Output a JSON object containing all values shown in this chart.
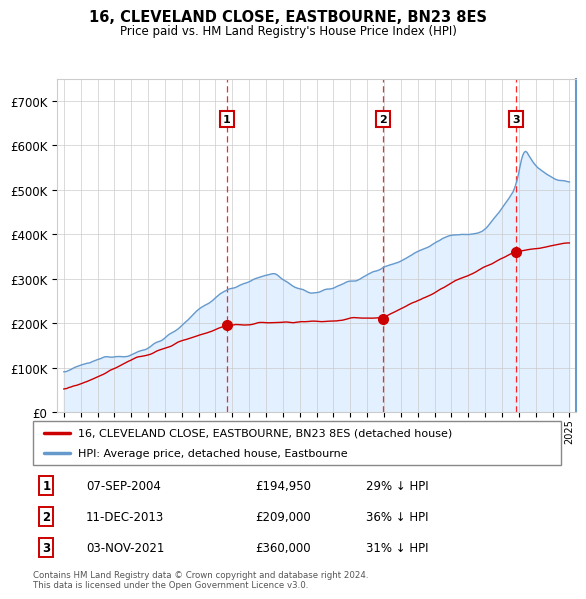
{
  "title": "16, CLEVELAND CLOSE, EASTBOURNE, BN23 8ES",
  "subtitle": "Price paid vs. HM Land Registry's House Price Index (HPI)",
  "sale_prices": [
    194950,
    209000,
    360000
  ],
  "sale_labels": [
    "1",
    "2",
    "3"
  ],
  "sale_pct": [
    "29% ↓ HPI",
    "36% ↓ HPI",
    "31% ↓ HPI"
  ],
  "sale_date_labels": [
    "07-SEP-2004",
    "11-DEC-2013",
    "03-NOV-2021"
  ],
  "sale_price_labels": [
    "£194,950",
    "£209,000",
    "£360,000"
  ],
  "sale_times": [
    2004.686,
    2013.948,
    2021.84
  ],
  "property_color": "#cc0000",
  "hpi_color": "#6699cc",
  "hpi_fill_color": "#ddeeff",
  "yticks": [
    0,
    100000,
    200000,
    300000,
    400000,
    500000,
    600000,
    700000
  ],
  "ytick_labels": [
    "£0",
    "£100K",
    "£200K",
    "£300K",
    "£400K",
    "£500K",
    "£600K",
    "£700K"
  ],
  "legend_property": "16, CLEVELAND CLOSE, EASTBOURNE, BN23 8ES (detached house)",
  "legend_hpi": "HPI: Average price, detached house, Eastbourne",
  "footer": "Contains HM Land Registry data © Crown copyright and database right 2024.\nThis data is licensed under the Open Government Licence v3.0.",
  "xstart": 1995,
  "xend": 2025
}
